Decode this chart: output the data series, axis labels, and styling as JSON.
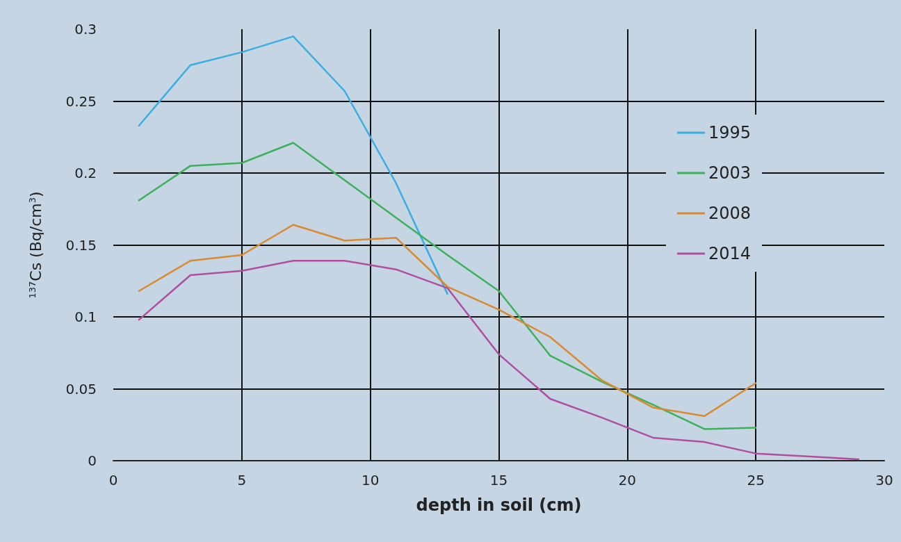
{
  "chart_data": {
    "type": "line",
    "xlabel": "depth in soil (cm)",
    "ylabel": "$^{137}$Cs (Bq/cm$^{3}$)",
    "x": [
      1,
      3,
      5,
      7,
      9,
      11,
      13,
      15,
      17,
      19,
      21,
      23,
      25,
      27,
      29
    ],
    "series": [
      {
        "name": "1995",
        "color": "#3aaee0",
        "values": [
          0.233,
          0.275,
          0.284,
          0.295,
          0.257,
          0.193,
          0.116,
          null,
          null,
          null,
          null,
          null,
          null,
          null,
          null
        ]
      },
      {
        "name": "2003",
        "color": "#3db05a",
        "values": [
          0.181,
          0.205,
          0.207,
          0.221,
          0.195,
          0.169,
          0.143,
          0.118,
          0.073,
          0.055,
          0.039,
          0.022,
          0.023,
          null,
          null
        ]
      },
      {
        "name": "2008",
        "color": "#d98a2e",
        "values": [
          0.118,
          0.139,
          0.143,
          0.164,
          0.153,
          0.155,
          0.121,
          0.105,
          0.086,
          0.056,
          0.037,
          0.031,
          0.054,
          null,
          null
        ]
      },
      {
        "name": "2014",
        "color": "#b04fa0",
        "values": [
          0.098,
          0.129,
          0.132,
          0.139,
          0.139,
          0.133,
          0.12,
          0.074,
          0.043,
          0.03,
          0.016,
          0.013,
          0.005,
          0.003,
          0.001
        ]
      }
    ],
    "xlim": [
      0,
      30
    ],
    "xticks": [
      0,
      5,
      10,
      15,
      20,
      25,
      30
    ],
    "ylim": [
      0,
      0.3
    ],
    "yticks": [
      0,
      0.05,
      0.1,
      0.15,
      0.2,
      0.25,
      0.3
    ],
    "grid": true,
    "legend": "right",
    "marker": "none",
    "line_style": "solid"
  }
}
